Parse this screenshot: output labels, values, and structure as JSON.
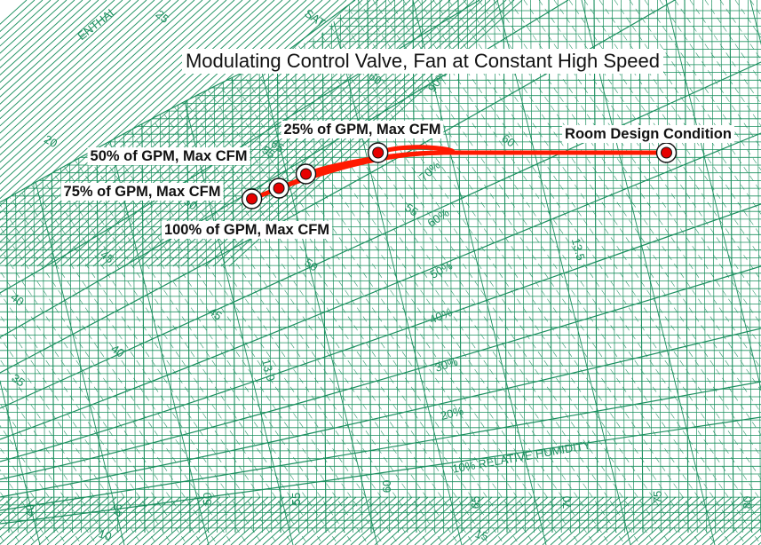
{
  "chart_data": {
    "type": "scatter",
    "title": "Modulating Control Valve, Fan at Constant High Speed",
    "x_axis": {
      "ticks": [
        "40",
        "45",
        "50",
        "55",
        "60",
        "65",
        "70",
        "75",
        "80"
      ]
    },
    "enthalpy_scale": {
      "label_fragment": "ENTHAL",
      "ticks": [
        "10",
        "15",
        "20",
        "25"
      ]
    },
    "saturation_label_fragment": "SAT",
    "wet_bulb_labels": [
      "35",
      "40",
      "45",
      "50",
      "55",
      "60"
    ],
    "dew_point_labels": [
      "40",
      "45",
      "50",
      "55",
      "60",
      "65"
    ],
    "specific_volume_labels": [
      "13.0",
      "13.5"
    ],
    "relative_humidity_labels": [
      "10% RELATIVE HUMIDITY",
      "20%",
      "30%",
      "40%",
      "50%",
      "60%",
      "70%",
      "90%"
    ],
    "grid": true,
    "colors": {
      "grid": "#1a8f5e",
      "process_line": "#ff1a00",
      "marker_outer": "#ffffff",
      "marker_inner": "#e60000"
    },
    "series": [
      {
        "name": "Room Design Condition",
        "x": 75,
        "y": 0.0112
      },
      {
        "name": "25% of GPM, Max CFM",
        "x": 59,
        "y": 0.0112
      },
      {
        "name": "50% of GPM, Max CFM",
        "x": 55,
        "y": 0.01
      },
      {
        "name": "75% of GPM, Max CFM",
        "x": 53.5,
        "y": 0.0092
      },
      {
        "name": "100% of GPM, Max CFM",
        "x": 52,
        "y": 0.0086
      }
    ]
  }
}
